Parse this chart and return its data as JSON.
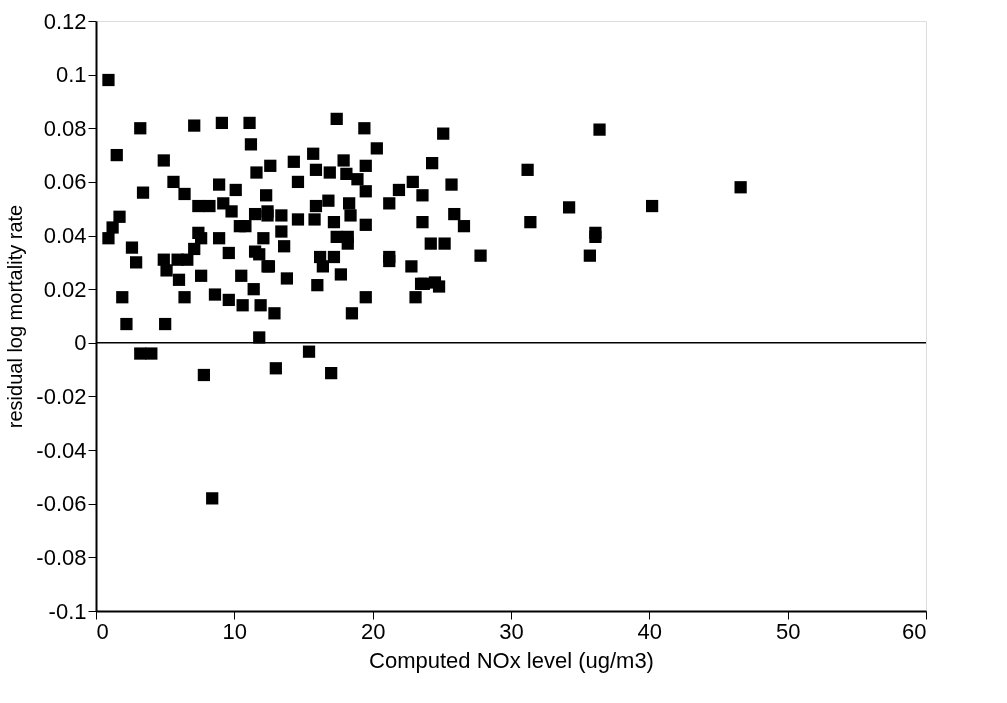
{
  "chart_data": {
    "type": "scatter",
    "xlabel": "Computed NOx level (ug/m3)",
    "ylabel": "residual log mortality rate",
    "x": [
      0.9,
      3.2,
      7.1,
      9.1,
      11.1,
      11.2,
      1.5,
      4.9,
      11.6,
      5.6,
      3.4,
      8.9,
      10.1,
      6.4,
      7.4,
      8.2,
      9.2,
      9.8,
      10.4,
      10.8,
      1.7,
      1.2,
      0.9,
      2.6,
      2.9,
      7.4,
      7.6,
      8.9,
      9.6,
      7.1,
      6.6,
      4.9,
      5.1,
      5.9,
      6.0,
      7.6,
      6.4,
      1.9,
      8.6,
      9.6,
      10.6,
      10.5,
      11.4,
      11.9,
      2.2,
      5.0,
      11.8,
      3.2,
      4.0,
      7.8,
      8.4,
      11.5,
      12.4,
      11.5,
      12.1,
      12.4,
      12.3,
      12.6,
      14.3,
      14.6,
      15.7,
      15.9,
      17.4,
      19.4,
      20.3,
      17.9,
      16.9,
      18.1,
      18.9,
      19.5,
      19.5,
      18.3,
      16.8,
      15.9,
      15.8,
      14.6,
      12.4,
      13.4,
      13.4,
      13.6,
      11.8,
      12.5,
      13.8,
      12.9,
      17.2,
      18.4,
      19.5,
      17.4,
      18.2,
      18.2,
      16.2,
      17.2,
      16.4,
      17.7,
      16.0,
      19.5,
      18.5,
      15.4,
      13.0,
      17.0,
      21.2,
      21.9,
      22.9,
      23.6,
      23.6,
      21.2,
      21.2,
      22.8,
      23.1,
      23.7,
      25.1,
      24.3,
      25.7,
      25.9,
      26.6,
      24.2,
      25.2,
      27.8,
      23.5,
      24.5,
      24.8,
      31.2,
      31.4,
      34.2,
      36.1,
      36.1,
      35.7,
      36.4,
      40.2,
      46.6
    ],
    "values": [
      0.098,
      0.08,
      0.081,
      0.082,
      0.082,
      0.074,
      0.07,
      0.068,
      0.0635,
      0.06,
      0.056,
      0.059,
      0.057,
      0.0555,
      0.051,
      0.051,
      0.052,
      0.049,
      0.0435,
      0.0435,
      0.047,
      0.043,
      0.039,
      0.0355,
      0.03,
      0.041,
      0.039,
      0.039,
      0.0335,
      0.035,
      0.031,
      0.031,
      0.027,
      0.031,
      0.0235,
      0.025,
      0.017,
      0.017,
      0.018,
      0.016,
      0.014,
      0.025,
      0.02,
      0.014,
      0.007,
      0.007,
      0.002,
      -0.004,
      -0.004,
      -0.012,
      -0.058,
      0.048,
      0.0475,
      0.034,
      0.039,
      0.0285,
      0.055,
      0.066,
      0.0675,
      0.06,
      0.0705,
      0.0645,
      0.0835,
      0.08,
      0.0725,
      0.068,
      0.0635,
      0.063,
      0.061,
      0.066,
      0.0565,
      0.052,
      0.053,
      0.051,
      0.046,
      0.046,
      0.049,
      0.0475,
      0.0415,
      0.036,
      0.033,
      0.0285,
      0.024,
      0.011,
      0.045,
      0.0475,
      0.044,
      0.0395,
      0.0395,
      0.037,
      0.032,
      0.032,
      0.0285,
      0.0255,
      0.0215,
      0.017,
      0.011,
      -0.0033,
      -0.0095,
      -0.0113,
      0.052,
      0.057,
      0.06,
      0.055,
      0.045,
      0.032,
      0.0305,
      0.0285,
      0.017,
      0.022,
      0.078,
      0.067,
      0.059,
      0.048,
      0.0435,
      0.037,
      0.037,
      0.0325,
      0.022,
      0.0225,
      0.021,
      0.0645,
      0.045,
      0.0505,
      0.041,
      0.0395,
      0.0325,
      0.0795,
      0.051,
      0.058
    ],
    "color": "#000000",
    "marker": "square",
    "xlim": [
      0,
      60
    ],
    "xticks": [
      0,
      10,
      20,
      30,
      40,
      50,
      60
    ],
    "ylim": [
      -0.1,
      0.12
    ],
    "yticks": [
      -0.1,
      -0.08,
      -0.06,
      -0.04,
      -0.02,
      0,
      0.02,
      0.04,
      0.06,
      0.08,
      0.1,
      0.12
    ],
    "ref_lines": [
      {
        "axis": "y",
        "value": 0,
        "color": "#000000"
      }
    ],
    "grid": false
  }
}
